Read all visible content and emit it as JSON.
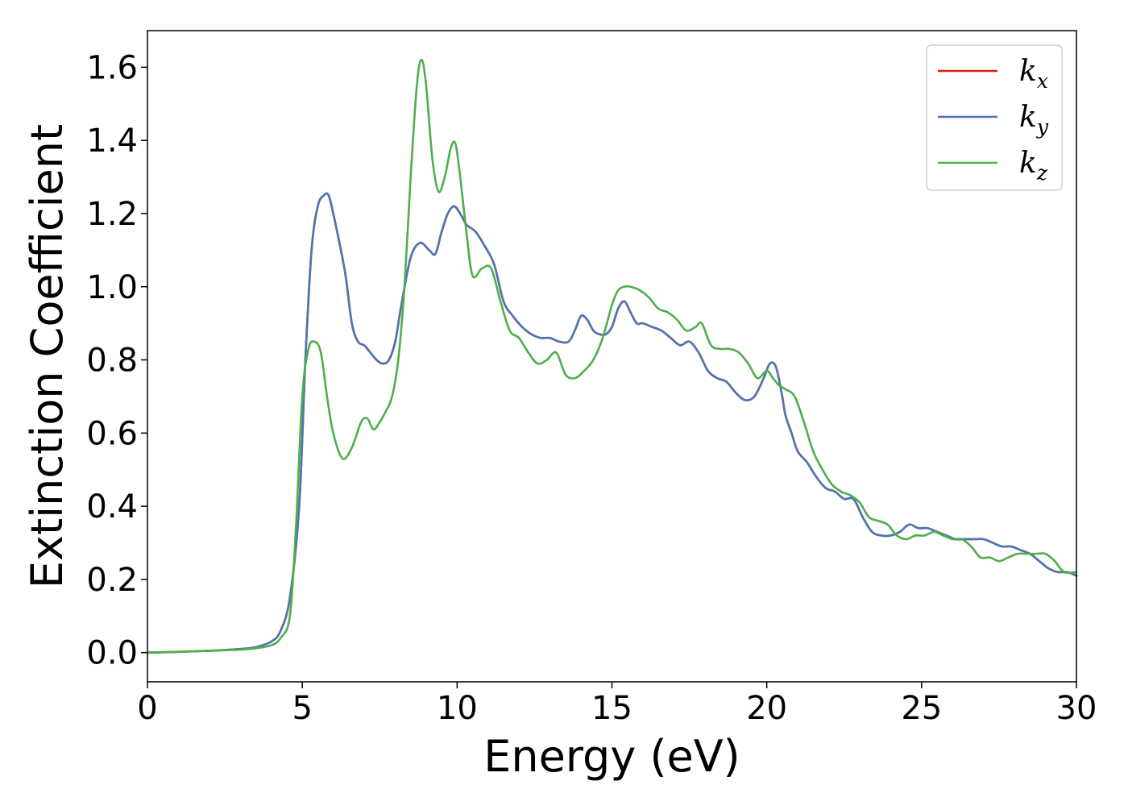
{
  "chart_data": {
    "type": "line",
    "title": "",
    "xlabel": "Energy (eV)",
    "ylabel": "Extinction Coefficient",
    "xlim": [
      0,
      30
    ],
    "ylim": [
      -0.08,
      1.7
    ],
    "xticks": [
      0,
      5,
      10,
      15,
      20,
      25,
      30
    ],
    "xtick_labels": [
      "0",
      "5",
      "10",
      "15",
      "20",
      "25",
      "30"
    ],
    "yticks": [
      0.0,
      0.2,
      0.4,
      0.6,
      0.8,
      1.0,
      1.2,
      1.4,
      1.6
    ],
    "ytick_labels": [
      "0.0",
      "0.2",
      "0.4",
      "0.6",
      "0.8",
      "1.0",
      "1.2",
      "1.4",
      "1.6"
    ],
    "grid": false,
    "legend_position": "top-right",
    "series": [
      {
        "name": "k",
        "subscript": "x",
        "color": "#e41a1c",
        "x": [
          0,
          1,
          2,
          3,
          3.5,
          4,
          4.3,
          4.6,
          4.9,
          5.1,
          5.3,
          5.5,
          5.7,
          5.85,
          6.0,
          6.2,
          6.4,
          6.6,
          6.8,
          7.0,
          7.2,
          7.4,
          7.6,
          7.8,
          8.0,
          8.2,
          8.5,
          8.8,
          9.1,
          9.3,
          9.5,
          9.7,
          9.9,
          10.1,
          10.3,
          10.6,
          10.9,
          11.2,
          11.5,
          11.8,
          12.1,
          12.4,
          12.7,
          13.0,
          13.3,
          13.6,
          13.8,
          14.0,
          14.2,
          14.4,
          14.6,
          14.8,
          15.0,
          15.2,
          15.4,
          15.6,
          15.8,
          16.0,
          16.3,
          16.6,
          16.9,
          17.2,
          17.5,
          17.8,
          18.1,
          18.4,
          18.7,
          19.0,
          19.3,
          19.6,
          19.9,
          20.1,
          20.3,
          20.5,
          20.6,
          20.8,
          21.0,
          21.3,
          21.6,
          21.9,
          22.2,
          22.5,
          22.8,
          23.1,
          23.4,
          23.7,
          24.0,
          24.3,
          24.6,
          24.9,
          25.2,
          25.5,
          25.8,
          26.1,
          26.4,
          26.7,
          27.0,
          27.3,
          27.6,
          27.9,
          28.2,
          28.5,
          28.8,
          29.1,
          29.4,
          29.7,
          30.0
        ],
        "y": [
          0.0,
          0.002,
          0.005,
          0.01,
          0.015,
          0.03,
          0.06,
          0.15,
          0.4,
          0.8,
          1.1,
          1.22,
          1.25,
          1.25,
          1.2,
          1.12,
          1.03,
          0.9,
          0.85,
          0.84,
          0.82,
          0.8,
          0.79,
          0.8,
          0.85,
          0.95,
          1.08,
          1.12,
          1.1,
          1.09,
          1.15,
          1.2,
          1.22,
          1.2,
          1.17,
          1.15,
          1.11,
          1.06,
          0.96,
          0.92,
          0.89,
          0.87,
          0.86,
          0.86,
          0.85,
          0.85,
          0.88,
          0.92,
          0.91,
          0.88,
          0.87,
          0.87,
          0.89,
          0.94,
          0.96,
          0.93,
          0.9,
          0.9,
          0.89,
          0.88,
          0.86,
          0.84,
          0.85,
          0.82,
          0.77,
          0.75,
          0.74,
          0.71,
          0.69,
          0.7,
          0.75,
          0.79,
          0.78,
          0.7,
          0.65,
          0.6,
          0.55,
          0.52,
          0.48,
          0.45,
          0.44,
          0.42,
          0.42,
          0.37,
          0.33,
          0.32,
          0.32,
          0.33,
          0.35,
          0.34,
          0.34,
          0.33,
          0.32,
          0.31,
          0.31,
          0.31,
          0.31,
          0.3,
          0.29,
          0.29,
          0.28,
          0.27,
          0.25,
          0.23,
          0.22,
          0.22,
          0.21
        ]
      },
      {
        "name": "k",
        "subscript": "y",
        "color": "#4a77b4",
        "x": [
          0,
          1,
          2,
          3,
          3.5,
          4,
          4.3,
          4.6,
          4.9,
          5.1,
          5.3,
          5.5,
          5.7,
          5.85,
          6.0,
          6.2,
          6.4,
          6.6,
          6.8,
          7.0,
          7.2,
          7.4,
          7.6,
          7.8,
          8.0,
          8.2,
          8.5,
          8.8,
          9.1,
          9.3,
          9.5,
          9.7,
          9.9,
          10.1,
          10.3,
          10.6,
          10.9,
          11.2,
          11.5,
          11.8,
          12.1,
          12.4,
          12.7,
          13.0,
          13.3,
          13.6,
          13.8,
          14.0,
          14.2,
          14.4,
          14.6,
          14.8,
          15.0,
          15.2,
          15.4,
          15.6,
          15.8,
          16.0,
          16.3,
          16.6,
          16.9,
          17.2,
          17.5,
          17.8,
          18.1,
          18.4,
          18.7,
          19.0,
          19.3,
          19.6,
          19.9,
          20.1,
          20.3,
          20.5,
          20.6,
          20.8,
          21.0,
          21.3,
          21.6,
          21.9,
          22.2,
          22.5,
          22.8,
          23.1,
          23.4,
          23.7,
          24.0,
          24.3,
          24.6,
          24.9,
          25.2,
          25.5,
          25.8,
          26.1,
          26.4,
          26.7,
          27.0,
          27.3,
          27.6,
          27.9,
          28.2,
          28.5,
          28.8,
          29.1,
          29.4,
          29.7,
          30.0
        ],
        "y": [
          0.0,
          0.002,
          0.005,
          0.01,
          0.015,
          0.03,
          0.06,
          0.15,
          0.4,
          0.8,
          1.1,
          1.22,
          1.25,
          1.25,
          1.2,
          1.12,
          1.03,
          0.9,
          0.85,
          0.84,
          0.82,
          0.8,
          0.79,
          0.8,
          0.85,
          0.95,
          1.08,
          1.12,
          1.1,
          1.09,
          1.15,
          1.2,
          1.22,
          1.2,
          1.17,
          1.15,
          1.11,
          1.06,
          0.96,
          0.92,
          0.89,
          0.87,
          0.86,
          0.86,
          0.85,
          0.85,
          0.88,
          0.92,
          0.91,
          0.88,
          0.87,
          0.87,
          0.89,
          0.94,
          0.96,
          0.93,
          0.9,
          0.9,
          0.89,
          0.88,
          0.86,
          0.84,
          0.85,
          0.82,
          0.77,
          0.75,
          0.74,
          0.71,
          0.69,
          0.7,
          0.75,
          0.79,
          0.78,
          0.7,
          0.65,
          0.6,
          0.55,
          0.52,
          0.48,
          0.45,
          0.44,
          0.42,
          0.42,
          0.37,
          0.33,
          0.32,
          0.32,
          0.33,
          0.35,
          0.34,
          0.34,
          0.33,
          0.32,
          0.31,
          0.31,
          0.31,
          0.31,
          0.3,
          0.29,
          0.29,
          0.28,
          0.27,
          0.25,
          0.23,
          0.22,
          0.22,
          0.21
        ]
      },
      {
        "name": "k",
        "subscript": "z",
        "color": "#4daf4a",
        "x": [
          0,
          1,
          2,
          3,
          3.5,
          4,
          4.3,
          4.6,
          4.8,
          5.0,
          5.2,
          5.4,
          5.6,
          5.8,
          6.0,
          6.3,
          6.6,
          6.9,
          7.1,
          7.3,
          7.5,
          7.7,
          7.9,
          8.1,
          8.3,
          8.5,
          8.7,
          8.85,
          9.0,
          9.2,
          9.4,
          9.6,
          9.8,
          9.95,
          10.1,
          10.3,
          10.5,
          10.8,
          11.1,
          11.4,
          11.7,
          12.0,
          12.3,
          12.6,
          12.9,
          13.2,
          13.5,
          13.8,
          14.1,
          14.4,
          14.7,
          15.0,
          15.2,
          15.4,
          15.6,
          15.9,
          16.2,
          16.5,
          16.8,
          17.1,
          17.4,
          17.7,
          17.9,
          18.2,
          18.5,
          18.8,
          19.1,
          19.4,
          19.7,
          20.0,
          20.2,
          20.4,
          20.6,
          20.9,
          21.2,
          21.5,
          21.8,
          22.1,
          22.4,
          22.7,
          23.0,
          23.3,
          23.6,
          23.9,
          24.2,
          24.5,
          24.8,
          25.1,
          25.4,
          25.7,
          26.0,
          26.3,
          26.6,
          26.9,
          27.2,
          27.5,
          27.8,
          28.1,
          28.4,
          28.7,
          29.0,
          29.3,
          29.6,
          30.0
        ],
        "y": [
          0.0,
          0.002,
          0.005,
          0.008,
          0.012,
          0.02,
          0.04,
          0.1,
          0.35,
          0.7,
          0.83,
          0.85,
          0.82,
          0.7,
          0.6,
          0.53,
          0.56,
          0.63,
          0.64,
          0.61,
          0.63,
          0.66,
          0.7,
          0.8,
          1.0,
          1.3,
          1.55,
          1.62,
          1.55,
          1.35,
          1.26,
          1.3,
          1.38,
          1.39,
          1.3,
          1.15,
          1.03,
          1.05,
          1.05,
          0.96,
          0.88,
          0.86,
          0.82,
          0.79,
          0.8,
          0.82,
          0.76,
          0.75,
          0.77,
          0.8,
          0.86,
          0.95,
          0.99,
          1.0,
          1.0,
          0.99,
          0.97,
          0.94,
          0.93,
          0.91,
          0.88,
          0.89,
          0.9,
          0.84,
          0.83,
          0.83,
          0.82,
          0.79,
          0.75,
          0.77,
          0.75,
          0.73,
          0.72,
          0.7,
          0.63,
          0.55,
          0.5,
          0.46,
          0.44,
          0.43,
          0.41,
          0.37,
          0.36,
          0.35,
          0.32,
          0.31,
          0.32,
          0.32,
          0.33,
          0.32,
          0.31,
          0.31,
          0.29,
          0.26,
          0.26,
          0.25,
          0.26,
          0.27,
          0.27,
          0.27,
          0.27,
          0.25,
          0.22,
          0.22
        ]
      }
    ]
  }
}
